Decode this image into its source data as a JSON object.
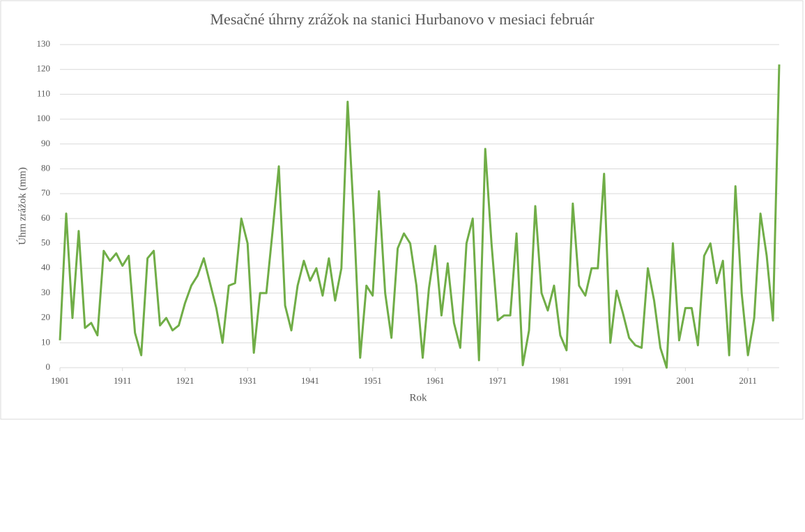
{
  "chart_data": {
    "type": "line",
    "title": "Mesačné úhrny zrážok na stanici Hurbanovo v mesiaci február",
    "x_label": "Rok",
    "y_label": "Úhrn zrážok (mm)",
    "x": [
      1901,
      1902,
      1903,
      1904,
      1905,
      1906,
      1907,
      1908,
      1909,
      1910,
      1911,
      1912,
      1913,
      1914,
      1915,
      1916,
      1917,
      1918,
      1919,
      1920,
      1921,
      1922,
      1923,
      1924,
      1925,
      1926,
      1927,
      1928,
      1929,
      1930,
      1931,
      1932,
      1933,
      1934,
      1935,
      1936,
      1937,
      1938,
      1939,
      1940,
      1941,
      1942,
      1943,
      1944,
      1945,
      1946,
      1947,
      1948,
      1949,
      1950,
      1951,
      1952,
      1953,
      1954,
      1955,
      1956,
      1957,
      1958,
      1959,
      1960,
      1961,
      1962,
      1963,
      1964,
      1965,
      1966,
      1967,
      1968,
      1969,
      1970,
      1971,
      1972,
      1973,
      1974,
      1975,
      1976,
      1977,
      1978,
      1979,
      1980,
      1981,
      1982,
      1983,
      1984,
      1985,
      1986,
      1987,
      1988,
      1989,
      1990,
      1991,
      1992,
      1993,
      1994,
      1995,
      1996,
      1997,
      1998,
      1999,
      2000,
      2001,
      2002,
      2003,
      2004,
      2005,
      2006,
      2007,
      2008,
      2009,
      2010,
      2011,
      2012,
      2013,
      2014,
      2015,
      2016
    ],
    "series": [
      {
        "color": "#70ad47",
        "values": [
          11,
          62,
          20,
          55,
          16,
          18,
          13,
          47,
          43,
          46,
          41,
          45,
          14,
          5,
          44,
          47,
          17,
          20,
          15,
          17,
          26,
          33,
          37,
          44,
          34,
          24,
          10,
          33,
          34,
          60,
          50,
          6,
          30,
          30,
          55,
          81,
          25,
          15,
          33,
          43,
          35,
          40,
          29,
          44,
          27,
          40,
          107,
          60,
          4,
          33,
          29,
          71,
          30,
          12,
          48,
          54,
          50,
          33,
          4,
          32,
          49,
          21,
          42,
          18,
          8,
          50,
          60,
          3,
          88,
          50,
          19,
          21,
          21,
          54,
          1,
          15,
          65,
          30,
          23,
          33,
          13,
          7,
          66,
          33,
          29,
          40,
          40,
          78,
          10,
          31,
          22,
          12,
          9,
          8,
          40,
          27,
          8,
          0,
          50,
          11,
          24,
          24,
          9,
          45,
          50,
          34,
          43,
          5,
          73,
          30,
          5,
          20,
          62,
          45,
          19,
          122
        ]
      }
    ],
    "xlim": [
      1901,
      2016
    ],
    "xticks": [
      1901,
      1911,
      1921,
      1931,
      1941,
      1951,
      1961,
      1971,
      1981,
      1991,
      2001,
      2011
    ],
    "ylim": [
      0,
      130
    ],
    "yticks": [
      0,
      10,
      20,
      30,
      40,
      50,
      60,
      70,
      80,
      90,
      100,
      110,
      120,
      130
    ],
    "grid": true
  }
}
